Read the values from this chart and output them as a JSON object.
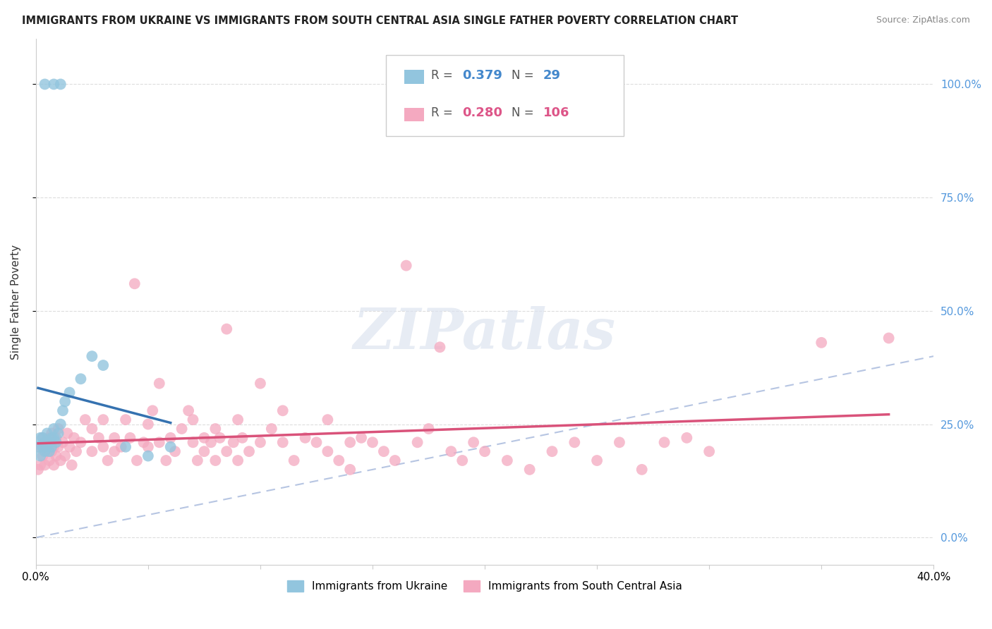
{
  "title": "IMMIGRANTS FROM UKRAINE VS IMMIGRANTS FROM SOUTH CENTRAL ASIA SINGLE FATHER POVERTY CORRELATION CHART",
  "source": "Source: ZipAtlas.com",
  "ylabel": "Single Father Poverty",
  "ukraine_color": "#92c5de",
  "sca_color": "#f4a9c0",
  "ukraine_trend_color": "#3572b0",
  "sca_trend_color": "#d9527a",
  "ref_line_color": "#aaaacc",
  "ukraine_scatter": [
    [
      0.001,
      0.2
    ],
    [
      0.002,
      0.22
    ],
    [
      0.002,
      0.18
    ],
    [
      0.003,
      0.2
    ],
    [
      0.003,
      0.22
    ],
    [
      0.004,
      0.19
    ],
    [
      0.004,
      0.21
    ],
    [
      0.005,
      0.2
    ],
    [
      0.005,
      0.23
    ],
    [
      0.006,
      0.21
    ],
    [
      0.006,
      0.19
    ],
    [
      0.007,
      0.22
    ],
    [
      0.007,
      0.2
    ],
    [
      0.008,
      0.24
    ],
    [
      0.008,
      0.22
    ],
    [
      0.009,
      0.21
    ],
    [
      0.01,
      0.23
    ],
    [
      0.011,
      0.25
    ],
    [
      0.012,
      0.28
    ],
    [
      0.013,
      0.3
    ],
    [
      0.015,
      0.32
    ],
    [
      0.02,
      0.35
    ],
    [
      0.025,
      0.4
    ],
    [
      0.03,
      0.38
    ],
    [
      0.04,
      0.2
    ],
    [
      0.05,
      0.18
    ],
    [
      0.06,
      0.2
    ],
    [
      0.004,
      1.0
    ],
    [
      0.008,
      1.0
    ],
    [
      0.011,
      1.0
    ]
  ],
  "sca_scatter": [
    [
      0.001,
      0.15
    ],
    [
      0.002,
      0.2
    ],
    [
      0.002,
      0.16
    ],
    [
      0.003,
      0.22
    ],
    [
      0.003,
      0.18
    ],
    [
      0.004,
      0.2
    ],
    [
      0.004,
      0.16
    ],
    [
      0.005,
      0.21
    ],
    [
      0.005,
      0.19
    ],
    [
      0.006,
      0.22
    ],
    [
      0.006,
      0.17
    ],
    [
      0.007,
      0.23
    ],
    [
      0.007,
      0.19
    ],
    [
      0.008,
      0.2
    ],
    [
      0.008,
      0.16
    ],
    [
      0.009,
      0.22
    ],
    [
      0.009,
      0.18
    ],
    [
      0.01,
      0.2
    ],
    [
      0.01,
      0.24
    ],
    [
      0.011,
      0.17
    ],
    [
      0.012,
      0.21
    ],
    [
      0.013,
      0.18
    ],
    [
      0.014,
      0.23
    ],
    [
      0.015,
      0.2
    ],
    [
      0.016,
      0.16
    ],
    [
      0.017,
      0.22
    ],
    [
      0.018,
      0.19
    ],
    [
      0.02,
      0.21
    ],
    [
      0.022,
      0.26
    ],
    [
      0.025,
      0.19
    ],
    [
      0.025,
      0.24
    ],
    [
      0.028,
      0.22
    ],
    [
      0.03,
      0.2
    ],
    [
      0.03,
      0.26
    ],
    [
      0.032,
      0.17
    ],
    [
      0.035,
      0.22
    ],
    [
      0.035,
      0.19
    ],
    [
      0.038,
      0.2
    ],
    [
      0.04,
      0.26
    ],
    [
      0.042,
      0.22
    ],
    [
      0.044,
      0.56
    ],
    [
      0.045,
      0.17
    ],
    [
      0.048,
      0.21
    ],
    [
      0.05,
      0.25
    ],
    [
      0.05,
      0.2
    ],
    [
      0.052,
      0.28
    ],
    [
      0.055,
      0.34
    ],
    [
      0.055,
      0.21
    ],
    [
      0.058,
      0.17
    ],
    [
      0.06,
      0.22
    ],
    [
      0.062,
      0.19
    ],
    [
      0.065,
      0.24
    ],
    [
      0.068,
      0.28
    ],
    [
      0.07,
      0.21
    ],
    [
      0.07,
      0.26
    ],
    [
      0.072,
      0.17
    ],
    [
      0.075,
      0.22
    ],
    [
      0.075,
      0.19
    ],
    [
      0.078,
      0.21
    ],
    [
      0.08,
      0.17
    ],
    [
      0.08,
      0.24
    ],
    [
      0.082,
      0.22
    ],
    [
      0.085,
      0.19
    ],
    [
      0.085,
      0.46
    ],
    [
      0.088,
      0.21
    ],
    [
      0.09,
      0.26
    ],
    [
      0.09,
      0.17
    ],
    [
      0.092,
      0.22
    ],
    [
      0.095,
      0.19
    ],
    [
      0.1,
      0.21
    ],
    [
      0.1,
      0.34
    ],
    [
      0.105,
      0.24
    ],
    [
      0.11,
      0.28
    ],
    [
      0.11,
      0.21
    ],
    [
      0.115,
      0.17
    ],
    [
      0.12,
      0.22
    ],
    [
      0.125,
      0.21
    ],
    [
      0.13,
      0.19
    ],
    [
      0.13,
      0.26
    ],
    [
      0.135,
      0.17
    ],
    [
      0.14,
      0.21
    ],
    [
      0.14,
      0.15
    ],
    [
      0.145,
      0.22
    ],
    [
      0.15,
      0.21
    ],
    [
      0.155,
      0.19
    ],
    [
      0.16,
      0.17
    ],
    [
      0.165,
      0.6
    ],
    [
      0.17,
      0.21
    ],
    [
      0.175,
      0.24
    ],
    [
      0.18,
      0.42
    ],
    [
      0.185,
      0.19
    ],
    [
      0.19,
      0.17
    ],
    [
      0.195,
      0.21
    ],
    [
      0.2,
      0.19
    ],
    [
      0.21,
      0.17
    ],
    [
      0.22,
      0.15
    ],
    [
      0.23,
      0.19
    ],
    [
      0.24,
      0.21
    ],
    [
      0.25,
      0.17
    ],
    [
      0.26,
      0.21
    ],
    [
      0.27,
      0.15
    ],
    [
      0.28,
      0.21
    ],
    [
      0.29,
      0.22
    ],
    [
      0.3,
      0.19
    ],
    [
      0.35,
      0.43
    ],
    [
      0.38,
      0.44
    ]
  ],
  "xlim": [
    0,
    0.4
  ],
  "ylim": [
    -0.06,
    1.1
  ],
  "yticks": [
    0.0,
    0.25,
    0.5,
    0.75,
    1.0
  ],
  "ytick_labels": [
    "0.0%",
    "25.0%",
    "50.0%",
    "75.0%",
    "100.0%"
  ],
  "xtick_left_label": "0.0%",
  "xtick_right_label": "40.0%",
  "background_color": "#ffffff",
  "grid_color": "#dddddd",
  "watermark_text": "ZIPatlas",
  "legend_ukraine_label": "Immigrants from Ukraine",
  "legend_sca_label": "Immigrants from South Central Asia"
}
